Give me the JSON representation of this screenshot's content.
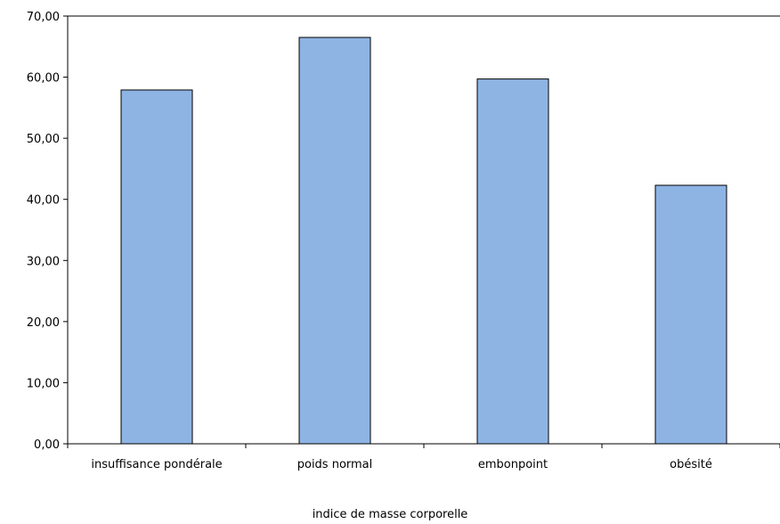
{
  "chart_data": {
    "type": "bar",
    "title": "",
    "xlabel": "indice de masse corporelle",
    "ylabel": "",
    "categories": [
      "insuffisance pondérale",
      "poids normal",
      "embonpoint",
      "obésité"
    ],
    "values": [
      57.9,
      66.5,
      59.7,
      42.3
    ],
    "ylim": [
      0,
      70
    ],
    "yticks": [
      "0,00",
      "10,00",
      "20,00",
      "30,00",
      "40,00",
      "50,00",
      "60,00",
      "70,00"
    ],
    "grid": false,
    "legend": "none",
    "colors": {
      "bar_fill": "#8EB4E3",
      "bar_stroke": "#000000",
      "axis": "#000000",
      "frame": "#000000",
      "background": "#FFFFFF"
    }
  }
}
